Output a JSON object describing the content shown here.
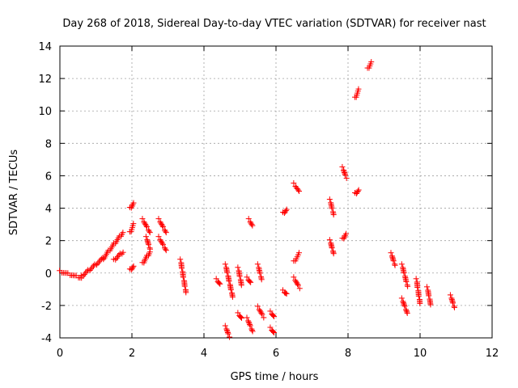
{
  "chart_data": {
    "type": "scatter",
    "title": "Day 268 of 2018, Sidereal Day-to-day VTEC variation (SDTVAR) for receiver nast",
    "xlabel": "GPS time / hours",
    "ylabel": "SDTVAR / TECUs",
    "xlim": [
      0,
      12
    ],
    "ylim": [
      -4,
      14
    ],
    "xticks": [
      0,
      2,
      4,
      6,
      8,
      10,
      12
    ],
    "yticks": [
      -4,
      -2,
      0,
      2,
      4,
      6,
      8,
      10,
      12,
      14
    ],
    "grid": true,
    "marker": "+",
    "color": "#ff0000",
    "segments": [
      {
        "x": [
          0.0,
          0.6
        ],
        "y": [
          0.1,
          -0.3
        ]
      },
      {
        "x": [
          0.6,
          1.2
        ],
        "y": [
          -0.2,
          0.9
        ]
      },
      {
        "x": [
          1.2,
          1.75
        ],
        "y": [
          0.9,
          2.5
        ]
      },
      {
        "x": [
          1.5,
          1.75
        ],
        "y": [
          0.8,
          1.3
        ]
      },
      {
        "x": [
          1.95,
          2.05
        ],
        "y": [
          4.0,
          4.3
        ]
      },
      {
        "x": [
          1.95,
          2.05
        ],
        "y": [
          2.5,
          3.0
        ]
      },
      {
        "x": [
          1.95,
          2.05
        ],
        "y": [
          0.2,
          0.4
        ]
      },
      {
        "x": [
          2.3,
          2.5
        ],
        "y": [
          3.3,
          2.5
        ]
      },
      {
        "x": [
          2.4,
          2.5
        ],
        "y": [
          2.2,
          1.5
        ]
      },
      {
        "x": [
          2.3,
          2.5
        ],
        "y": [
          0.6,
          1.3
        ]
      },
      {
        "x": [
          2.75,
          2.95
        ],
        "y": [
          3.3,
          2.5
        ]
      },
      {
        "x": [
          2.75,
          2.95
        ],
        "y": [
          2.2,
          1.4
        ]
      },
      {
        "x": [
          3.35,
          3.5
        ],
        "y": [
          0.8,
          -1.2
        ]
      },
      {
        "x": [
          4.35,
          4.45
        ],
        "y": [
          -0.4,
          -0.7
        ]
      },
      {
        "x": [
          4.6,
          4.8
        ],
        "y": [
          0.5,
          -1.5
        ]
      },
      {
        "x": [
          4.6,
          4.7
        ],
        "y": [
          -3.3,
          -3.9
        ]
      },
      {
        "x": [
          4.95,
          5.05
        ],
        "y": [
          0.3,
          -0.8
        ]
      },
      {
        "x": [
          4.95,
          5.05
        ],
        "y": [
          -2.5,
          -2.8
        ]
      },
      {
        "x": [
          5.2,
          5.3
        ],
        "y": [
          -0.3,
          -0.6
        ]
      },
      {
        "x": [
          5.2,
          5.35
        ],
        "y": [
          -2.8,
          -3.6
        ]
      },
      {
        "x": [
          5.25,
          5.35
        ],
        "y": [
          3.3,
          2.9
        ]
      },
      {
        "x": [
          5.5,
          5.6
        ],
        "y": [
          0.5,
          -0.4
        ]
      },
      {
        "x": [
          5.5,
          5.65
        ],
        "y": [
          -2.1,
          -2.7
        ]
      },
      {
        "x": [
          5.85,
          5.95
        ],
        "y": [
          -2.4,
          -2.7
        ]
      },
      {
        "x": [
          5.85,
          5.95
        ],
        "y": [
          -3.4,
          -3.7
        ]
      },
      {
        "x": [
          6.2,
          6.3
        ],
        "y": [
          3.7,
          3.9
        ]
      },
      {
        "x": [
          6.2,
          6.3
        ],
        "y": [
          -1.1,
          -1.3
        ]
      },
      {
        "x": [
          6.5,
          6.65
        ],
        "y": [
          5.5,
          5.0
        ]
      },
      {
        "x": [
          6.5,
          6.65
        ],
        "y": [
          0.7,
          1.2
        ]
      },
      {
        "x": [
          6.5,
          6.65
        ],
        "y": [
          -0.3,
          -0.9
        ]
      },
      {
        "x": [
          7.5,
          7.6
        ],
        "y": [
          4.5,
          3.6
        ]
      },
      {
        "x": [
          7.5,
          7.6
        ],
        "y": [
          2.0,
          1.2
        ]
      },
      {
        "x": [
          7.85,
          7.95
        ],
        "y": [
          6.5,
          5.9
        ]
      },
      {
        "x": [
          7.85,
          7.95
        ],
        "y": [
          2.1,
          2.4
        ]
      },
      {
        "x": [
          8.2,
          8.3
        ],
        "y": [
          4.9,
          5.1
        ]
      },
      {
        "x": [
          8.2,
          8.3
        ],
        "y": [
          10.8,
          11.3
        ]
      },
      {
        "x": [
          8.55,
          8.65
        ],
        "y": [
          12.6,
          13.0
        ]
      },
      {
        "x": [
          9.2,
          9.3
        ],
        "y": [
          1.2,
          0.5
        ]
      },
      {
        "x": [
          9.5,
          9.65
        ],
        "y": [
          0.5,
          -0.8
        ]
      },
      {
        "x": [
          9.5,
          9.65
        ],
        "y": [
          -1.6,
          -2.5
        ]
      },
      {
        "x": [
          9.9,
          10.0
        ],
        "y": [
          -0.4,
          -1.9
        ]
      },
      {
        "x": [
          10.2,
          10.3
        ],
        "y": [
          -0.9,
          -2.0
        ]
      },
      {
        "x": [
          10.85,
          10.95
        ],
        "y": [
          -1.4,
          -2.1
        ]
      }
    ]
  }
}
